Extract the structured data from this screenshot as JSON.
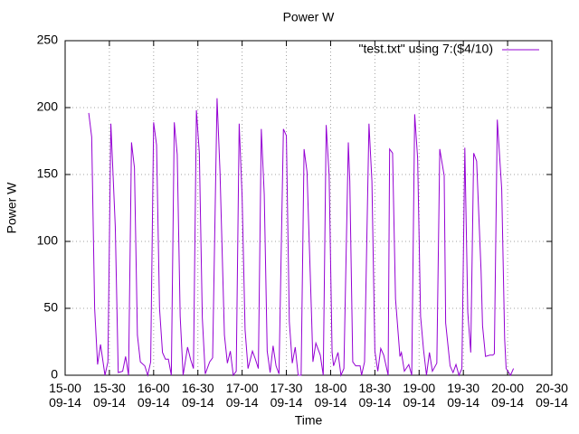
{
  "chart_data": {
    "type": "line",
    "title": "Power W",
    "xlabel": "Time",
    "ylabel": "Power W",
    "grid": true,
    "legend": "top-right",
    "xlim": [
      "15:00",
      "20:30"
    ],
    "xticks": [
      {
        "value": "15:00",
        "label": "15-00\n09-14"
      },
      {
        "value": "15:30",
        "label": "15-30\n09-14"
      },
      {
        "value": "16:00",
        "label": "16-00\n09-14"
      },
      {
        "value": "16:30",
        "label": "16-30\n09-14"
      },
      {
        "value": "17:00",
        "label": "17-00\n09-14"
      },
      {
        "value": "17:30",
        "label": "17-30\n09-14"
      },
      {
        "value": "18:00",
        "label": "18-00\n09-14"
      },
      {
        "value": "18:30",
        "label": "18-30\n09-14"
      },
      {
        "value": "19:00",
        "label": "19-00\n09-14"
      },
      {
        "value": "19:30",
        "label": "19-30\n09-14"
      },
      {
        "value": "20:00",
        "label": "20-00\n09-14"
      },
      {
        "value": "20:30",
        "label": "20-30\n09-14"
      }
    ],
    "ylim": [
      0,
      250
    ],
    "yticks": [
      0,
      50,
      100,
      150,
      200,
      250
    ],
    "x": [
      "15:16",
      "15:18",
      "15:20",
      "15:22",
      "15:24",
      "15:27",
      "15:29",
      "15:31",
      "15:34",
      "15:36",
      "15:39",
      "15:41",
      "15:43",
      "15:45",
      "15:47",
      "15:49",
      "15:51",
      "15:54",
      "15:56",
      "15:58",
      "16:00",
      "16:02",
      "16:04",
      "16:06",
      "16:08",
      "16:10",
      "16:12",
      "16:14",
      "16:16",
      "16:18",
      "16:20",
      "16:23",
      "16:25",
      "16:27",
      "16:29",
      "16:31",
      "16:33",
      "16:35",
      "16:38",
      "16:40",
      "16:43",
      "16:45",
      "16:48",
      "16:50",
      "16:52",
      "16:54",
      "16:56",
      "16:58",
      "17:00",
      "17:02",
      "17:04",
      "17:07",
      "17:09",
      "17:11",
      "17:13",
      "17:15",
      "17:17",
      "17:19",
      "17:21",
      "17:23",
      "17:25",
      "17:28",
      "17:30",
      "17:32",
      "17:34",
      "17:36",
      "17:38",
      "17:40",
      "17:42",
      "17:44",
      "17:47",
      "17:48",
      "17:50",
      "17:53",
      "17:55",
      "17:57",
      "17:59",
      "18:01",
      "18:02",
      "18:05",
      "18:07",
      "18:09",
      "18:12",
      "18:13",
      "18:15",
      "18:17",
      "18:20",
      "18:21",
      "18:23",
      "18:26",
      "18:28",
      "18:30",
      "18:32",
      "18:34",
      "18:36",
      "18:39",
      "18:40",
      "18:42",
      "18:44",
      "18:47",
      "18:48",
      "18:50",
      "18:53",
      "18:55",
      "18:57",
      "18:59",
      "19:01",
      "19:03",
      "19:05",
      "19:07",
      "19:09",
      "19:12",
      "19:14",
      "19:17",
      "19:18",
      "19:21",
      "19:23",
      "19:25",
      "19:27",
      "19:29",
      "19:31",
      "19:33",
      "19:35",
      "19:37",
      "19:39",
      "19:42",
      "19:43",
      "19:45",
      "19:48",
      "19:50",
      "19:51",
      "19:53",
      "19:56",
      "19:58",
      "19:59",
      "20:02",
      "20:04"
    ],
    "series": [
      {
        "name": "\"test.txt\" using 7:($4/10)",
        "color": "#9400d3",
        "values": [
          196,
          178,
          50,
          8,
          23,
          0,
          10,
          188,
          111,
          2,
          3,
          14,
          0,
          174,
          155,
          30,
          10,
          7,
          0,
          10,
          189,
          172,
          50,
          17,
          12,
          12,
          0,
          189,
          165,
          44,
          0,
          21,
          12,
          5,
          198,
          166,
          43,
          1,
          10,
          13,
          207,
          152,
          30,
          9,
          18,
          0,
          3,
          188,
          133,
          34,
          5,
          18,
          12,
          5,
          184,
          135,
          18,
          2,
          22,
          7,
          1,
          184,
          179,
          40,
          9,
          21,
          0,
          0,
          169,
          152,
          47,
          10,
          24,
          15,
          0,
          187,
          149,
          17,
          7,
          17,
          0,
          5,
          174,
          145,
          10,
          7,
          7,
          0,
          10,
          188,
          145,
          18,
          3,
          20,
          15,
          0,
          169,
          166,
          57,
          14,
          17,
          3,
          8,
          0,
          195,
          162,
          44,
          19,
          0,
          17,
          3,
          9,
          169,
          149,
          39,
          7,
          2,
          8,
          0,
          5,
          170,
          47,
          17,
          166,
          160,
          78,
          37,
          14,
          15,
          15,
          16,
          191,
          139,
          27,
          5,
          0,
          5
        ]
      }
    ]
  }
}
